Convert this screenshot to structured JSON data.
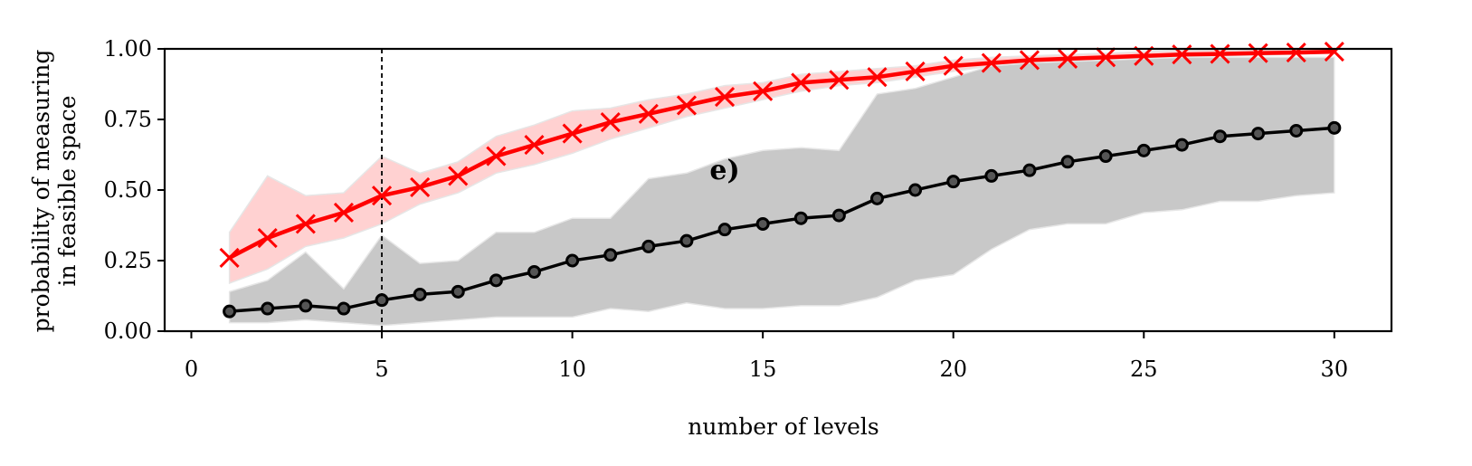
{
  "chart_data": {
    "type": "line",
    "xlabel": "number of levels",
    "ylabel_lines": [
      "probability of measuring",
      "in feasible space"
    ],
    "annotation": "e)",
    "annotation_pos": [
      14,
      0.52
    ],
    "xlim": [
      -0.7,
      31.5
    ],
    "ylim": [
      0,
      1
    ],
    "xticks": [
      0,
      5,
      10,
      15,
      20,
      25,
      30
    ],
    "yticks": [
      0.0,
      0.25,
      0.5,
      0.75,
      1.0
    ],
    "ytick_labels": [
      "0.00",
      "0.25",
      "0.50",
      "0.75",
      "1.00"
    ],
    "vline_x": 5,
    "grid": false,
    "x": [
      1,
      2,
      3,
      4,
      5,
      6,
      7,
      8,
      9,
      10,
      11,
      12,
      13,
      14,
      15,
      16,
      17,
      18,
      19,
      20,
      21,
      22,
      23,
      24,
      25,
      26,
      27,
      28,
      29,
      30
    ],
    "series": [
      {
        "marker": "x",
        "color": "#ff0000",
        "band_color": "#ffb3b3",
        "values": [
          0.26,
          0.33,
          0.38,
          0.42,
          0.48,
          0.51,
          0.55,
          0.62,
          0.66,
          0.7,
          0.74,
          0.77,
          0.8,
          0.83,
          0.85,
          0.88,
          0.89,
          0.9,
          0.92,
          0.94,
          0.95,
          0.96,
          0.965,
          0.97,
          0.975,
          0.98,
          0.982,
          0.985,
          0.987,
          0.99
        ],
        "lower": [
          0.17,
          0.22,
          0.3,
          0.33,
          0.38,
          0.45,
          0.49,
          0.56,
          0.59,
          0.63,
          0.68,
          0.72,
          0.76,
          0.79,
          0.82,
          0.85,
          0.87,
          0.88,
          0.9,
          0.92,
          0.94,
          0.95,
          0.955,
          0.96,
          0.965,
          0.97,
          0.975,
          0.978,
          0.982,
          0.985
        ],
        "upper": [
          0.35,
          0.55,
          0.48,
          0.49,
          0.62,
          0.56,
          0.6,
          0.69,
          0.73,
          0.78,
          0.79,
          0.82,
          0.84,
          0.87,
          0.88,
          0.91,
          0.92,
          0.93,
          0.94,
          0.96,
          0.97,
          0.975,
          0.98,
          0.985,
          0.99,
          0.995,
          0.997,
          0.998,
          0.999,
          1.0
        ]
      },
      {
        "marker": "o",
        "color": "#000000",
        "band_color": "#c8c8c8",
        "values": [
          0.07,
          0.08,
          0.09,
          0.08,
          0.11,
          0.13,
          0.14,
          0.18,
          0.21,
          0.25,
          0.27,
          0.3,
          0.32,
          0.36,
          0.38,
          0.4,
          0.41,
          0.47,
          0.5,
          0.53,
          0.55,
          0.57,
          0.6,
          0.62,
          0.64,
          0.66,
          0.69,
          0.7,
          0.71,
          0.72
        ],
        "lower": [
          0.03,
          0.03,
          0.04,
          0.03,
          0.02,
          0.03,
          0.04,
          0.05,
          0.05,
          0.05,
          0.08,
          0.07,
          0.1,
          0.08,
          0.08,
          0.09,
          0.09,
          0.12,
          0.18,
          0.2,
          0.29,
          0.36,
          0.38,
          0.38,
          0.42,
          0.43,
          0.46,
          0.46,
          0.48,
          0.49
        ],
        "upper": [
          0.14,
          0.18,
          0.28,
          0.15,
          0.34,
          0.24,
          0.25,
          0.35,
          0.35,
          0.4,
          0.4,
          0.54,
          0.56,
          0.61,
          0.64,
          0.65,
          0.64,
          0.84,
          0.86,
          0.9,
          0.94,
          0.95,
          0.96,
          0.97,
          0.97,
          0.97,
          0.97,
          0.97,
          0.97,
          0.97
        ]
      }
    ]
  }
}
